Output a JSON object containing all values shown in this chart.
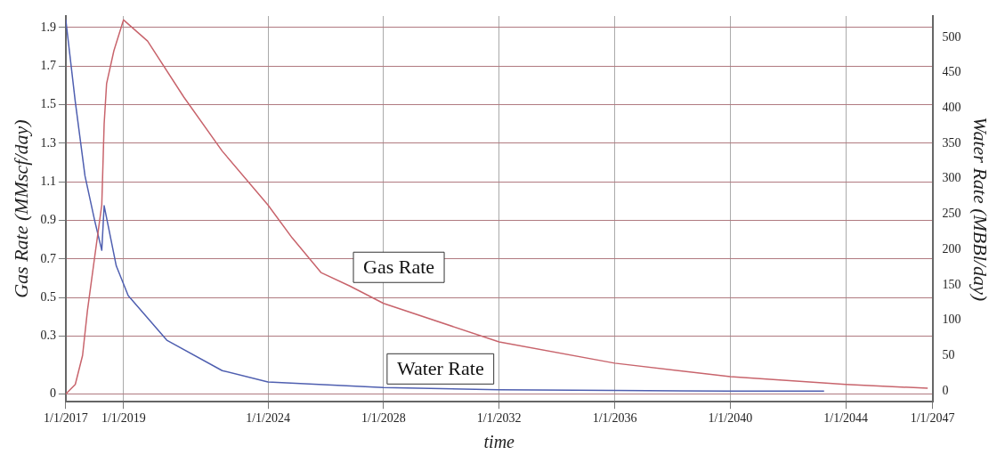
{
  "chart_data": {
    "type": "line",
    "xlabel": "time",
    "ylabel": "Gas Rate (MMscf/day)",
    "y2label": "Water Rate (MBBl/day)",
    "xlim": [
      "2017-01-01",
      "2047-01-01"
    ],
    "xticks": [
      {
        "value": "2017-01-01",
        "label": "1/1/2017"
      },
      {
        "value": "2019-01-01",
        "label": "1/1/2019"
      },
      {
        "value": "2024-01-01",
        "label": "1/1/2024"
      },
      {
        "value": "2028-01-01",
        "label": "1/1/2028"
      },
      {
        "value": "2032-01-01",
        "label": "1/1/2032"
      },
      {
        "value": "2036-01-01",
        "label": "1/1/2036"
      },
      {
        "value": "2040-01-01",
        "label": "1/1/2040"
      },
      {
        "value": "2044-01-01",
        "label": "1/1/2044"
      },
      {
        "value": "2047-01-01",
        "label": "1/1/2047"
      }
    ],
    "ylim": [
      -0.04,
      1.96
    ],
    "yticks": [
      0,
      0.3,
      0.5,
      0.7,
      0.9,
      1.1,
      1.3,
      1.5,
      1.7,
      1.9
    ],
    "y2lim": [
      -15,
      530
    ],
    "y2ticks": [
      0,
      50,
      100,
      150,
      200,
      250,
      300,
      350,
      400,
      450,
      500
    ],
    "grid": true,
    "line_style": "solid",
    "marker": "none",
    "series": [
      {
        "name": "Gas Rate",
        "color": "#c8646c",
        "x": [
          "2017-01",
          "2017-05",
          "2017-08",
          "2017-10",
          "2018-01",
          "2018-04",
          "2018-05",
          "2018-06",
          "2018-09",
          "2019-01",
          "2019-11",
          "2021-02",
          "2022-06",
          "2024-01",
          "2024-11",
          "2025-11",
          "2026-11",
          "2028-01",
          "2032-01",
          "2036-01",
          "2040-01",
          "2044-01",
          "2046-11"
        ],
        "values": [
          0.0,
          0.05,
          0.2,
          0.43,
          0.71,
          0.98,
          1.4,
          1.61,
          1.78,
          1.94,
          1.83,
          1.54,
          1.26,
          0.98,
          0.81,
          0.63,
          0.56,
          0.47,
          0.27,
          0.16,
          0.09,
          0.05,
          0.03
        ]
      },
      {
        "name": "Water Rate",
        "color": "#4f5fb0",
        "axis": "y2",
        "x": [
          "2017-01",
          "2017-05",
          "2017-09",
          "2018-01",
          "2018-04",
          "2018-05",
          "2018-10",
          "2019-03",
          "2020-07",
          "2022-06",
          "2024-01",
          "2028-01",
          "2032-01",
          "2036-01",
          "2040-01",
          "2043-04"
        ],
        "values": [
          525,
          409,
          304,
          241,
          199,
          262,
          177,
          135,
          72,
          29,
          13,
          5,
          2,
          1,
          0,
          0
        ]
      }
    ]
  }
}
